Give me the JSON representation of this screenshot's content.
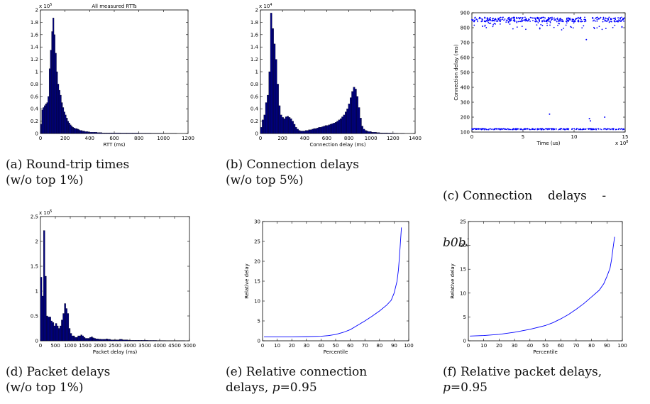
{
  "figure": {
    "captions": [
      {
        "line1": "(a) Round-trip times",
        "line2": "(w/o top 1%)"
      },
      {
        "line1": "(b) Connection delays",
        "line2": "(w/o top 5%)"
      },
      {
        "line1": "(c) Connection    delays    -",
        "line2": "b0b3r"
      },
      {
        "line1": "(d) Packet delays",
        "line2": "(w/o top 1%)"
      },
      {
        "line1": "(e) Relative connection",
        "line2": "delays, p=0.95"
      },
      {
        "line1": "(f) Relative packet delays,",
        "line2": "p=0.95"
      }
    ]
  },
  "chart_data": [
    {
      "type": "bar",
      "title": "All measured RTTs",
      "xlabel": "RTT (ms)",
      "ylabel": "",
      "yexponent": "x 10^5",
      "xlim": [
        0,
        1200
      ],
      "ylim": [
        0,
        2
      ],
      "xticks": [
        "0",
        "200",
        "400",
        "600",
        "800",
        "1000",
        "1200"
      ],
      "yticks": [
        "0",
        "0.2",
        "0.4",
        "0.6",
        "0.8",
        "1",
        "1.2",
        "1.4",
        "1.6",
        "1.8",
        "2"
      ],
      "bar_color": "#000080",
      "bin_width": 10,
      "bins_start": [
        0,
        10,
        20,
        30,
        40,
        50,
        60,
        70,
        80,
        90,
        100,
        110,
        120,
        130,
        140,
        150,
        160,
        170,
        180,
        190,
        200,
        210,
        220,
        230,
        240,
        250,
        260,
        270,
        280,
        290,
        300,
        310,
        320,
        330,
        340,
        350,
        360,
        370,
        380,
        390,
        400,
        420,
        440,
        460,
        480,
        500,
        520,
        540,
        560,
        580,
        600,
        650,
        700,
        750,
        800,
        850,
        900,
        950,
        1000,
        1050,
        1100
      ],
      "values": [
        0.15,
        0.38,
        0.42,
        0.45,
        0.48,
        0.5,
        0.6,
        1.05,
        1.35,
        1.65,
        1.87,
        1.6,
        1.3,
        1.0,
        0.8,
        0.7,
        0.62,
        0.5,
        0.42,
        0.35,
        0.3,
        0.25,
        0.2,
        0.17,
        0.14,
        0.12,
        0.1,
        0.09,
        0.08,
        0.08,
        0.07,
        0.06,
        0.05,
        0.05,
        0.04,
        0.04,
        0.03,
        0.03,
        0.03,
        0.02,
        0.02,
        0.02,
        0.02,
        0.015,
        0.015,
        0.01,
        0.01,
        0.01,
        0.01,
        0.01,
        0.01,
        0.008,
        0.008,
        0.008,
        0.006,
        0.006,
        0.005,
        0.005,
        0.004,
        0.004,
        0.003
      ]
    },
    {
      "type": "bar",
      "title": "",
      "xlabel": "Connection delay (ms)",
      "ylabel": "",
      "yexponent": "x 10^4",
      "xlim": [
        0,
        1400
      ],
      "ylim": [
        0,
        2
      ],
      "xticks": [
        "0",
        "200",
        "400",
        "600",
        "800",
        "1000",
        "1200",
        "1400"
      ],
      "yticks": [
        "0",
        "0.2",
        "0.4",
        "0.6",
        "0.8",
        "1",
        "1.2",
        "1.4",
        "1.6",
        "1.8",
        "2"
      ],
      "bar_color": "#000080",
      "bin_width": 15,
      "bins_start": [
        0,
        15,
        30,
        45,
        60,
        75,
        90,
        105,
        120,
        135,
        150,
        165,
        180,
        195,
        210,
        225,
        240,
        255,
        270,
        285,
        300,
        315,
        330,
        345,
        360,
        375,
        390,
        405,
        420,
        435,
        450,
        465,
        480,
        495,
        510,
        525,
        540,
        555,
        570,
        585,
        600,
        615,
        630,
        645,
        660,
        675,
        690,
        705,
        720,
        735,
        750,
        765,
        780,
        795,
        810,
        825,
        840,
        855,
        870,
        885,
        900,
        915,
        930,
        945,
        960,
        975,
        990,
        1005,
        1020,
        1035,
        1050,
        1065,
        1080,
        1095,
        1110,
        1125,
        1140,
        1155,
        1170,
        1185,
        1200,
        1215,
        1230,
        1245,
        1260,
        1275,
        1290
      ],
      "values": [
        0.1,
        0.22,
        0.3,
        0.5,
        0.62,
        1.0,
        1.95,
        1.7,
        1.45,
        1.2,
        0.8,
        0.45,
        0.3,
        0.26,
        0.24,
        0.27,
        0.28,
        0.26,
        0.24,
        0.2,
        0.15,
        0.1,
        0.07,
        0.05,
        0.04,
        0.04,
        0.04,
        0.05,
        0.05,
        0.06,
        0.06,
        0.07,
        0.08,
        0.08,
        0.09,
        0.1,
        0.1,
        0.11,
        0.12,
        0.13,
        0.13,
        0.14,
        0.15,
        0.16,
        0.17,
        0.18,
        0.2,
        0.22,
        0.24,
        0.27,
        0.3,
        0.35,
        0.4,
        0.48,
        0.58,
        0.68,
        0.75,
        0.72,
        0.6,
        0.42,
        0.25,
        0.12,
        0.07,
        0.05,
        0.04,
        0.03,
        0.03,
        0.02,
        0.02,
        0.02,
        0.015,
        0.015,
        0.01,
        0.01,
        0.01,
        0.01,
        0.01,
        0.008,
        0.008,
        0.006,
        0.006,
        0.005,
        0.005,
        0.004,
        0.004,
        0.003,
        0.003
      ]
    },
    {
      "type": "scatter",
      "title": "",
      "xlabel": "Time (us)",
      "ylabel": "Connection delay (ms)",
      "xexponent": "x 10^8",
      "xlim": [
        0,
        15
      ],
      "ylim": [
        100,
        900
      ],
      "xticks": [
        "0",
        "5",
        "10",
        "15"
      ],
      "yticks": [
        "100",
        "200",
        "300",
        "400",
        "500",
        "600",
        "700",
        "800",
        "900"
      ],
      "point_color": "#0000ff",
      "clusters": [
        {
          "name": "upper band",
          "x_range": [
            0,
            15
          ],
          "y_center": 855
        },
        {
          "name": "lower band",
          "x_range": [
            0,
            15
          ],
          "y_center": 120
        }
      ],
      "outliers": [
        [
          7.6,
          220
        ],
        [
          11.5,
          190
        ],
        [
          11.6,
          175
        ],
        [
          13.0,
          200
        ],
        [
          11.2,
          720
        ]
      ]
    },
    {
      "type": "bar",
      "title": "",
      "xlabel": "Packet delay (ms)",
      "ylabel": "",
      "yexponent": "x 10^5",
      "xlim": [
        0,
        5000
      ],
      "ylim": [
        0,
        2.5
      ],
      "xticks": [
        "0",
        "500",
        "1000",
        "1500",
        "2000",
        "2500",
        "3000",
        "3500",
        "4000",
        "4500",
        "5000"
      ],
      "yticks": [
        "0",
        "0.5",
        "1",
        "1.5",
        "2",
        "2.5"
      ],
      "bar_color": "#000080",
      "bin_width": 50,
      "bins_start": [
        0,
        50,
        100,
        150,
        200,
        250,
        300,
        350,
        400,
        450,
        500,
        550,
        600,
        650,
        700,
        750,
        800,
        850,
        900,
        950,
        1000,
        1050,
        1100,
        1150,
        1200,
        1250,
        1300,
        1350,
        1400,
        1450,
        1500,
        1550,
        1600,
        1650,
        1700,
        1750,
        1800,
        1850,
        1900,
        1950,
        2000,
        2050,
        2100,
        2150,
        2200,
        2250,
        2300,
        2350,
        2400,
        2450,
        2500,
        2550,
        2600,
        2650,
        2700,
        2750,
        2800,
        2850,
        2900,
        2950,
        3000,
        3100,
        3200,
        3300,
        3400,
        3500,
        3600,
        3700,
        3800,
        3900,
        4000,
        4200,
        4400,
        4600,
        4800
      ],
      "values": [
        1.28,
        0.9,
        2.22,
        1.3,
        0.5,
        0.48,
        0.48,
        0.4,
        0.37,
        0.3,
        0.35,
        0.3,
        0.25,
        0.3,
        0.42,
        0.55,
        0.75,
        0.65,
        0.55,
        0.25,
        0.15,
        0.1,
        0.1,
        0.07,
        0.07,
        0.1,
        0.1,
        0.12,
        0.1,
        0.07,
        0.05,
        0.05,
        0.05,
        0.07,
        0.08,
        0.06,
        0.05,
        0.04,
        0.04,
        0.03,
        0.03,
        0.03,
        0.03,
        0.03,
        0.04,
        0.03,
        0.03,
        0.02,
        0.02,
        0.02,
        0.02,
        0.02,
        0.02,
        0.03,
        0.03,
        0.02,
        0.02,
        0.02,
        0.02,
        0.01,
        0.01,
        0.01,
        0.01,
        0.01,
        0.01,
        0.01,
        0.008,
        0.008,
        0.008,
        0.006,
        0.006,
        0.005,
        0.005,
        0.004,
        0.003
      ]
    },
    {
      "type": "line",
      "title": "",
      "xlabel": "Percentile",
      "ylabel": "Relative delay",
      "xlim": [
        0,
        100
      ],
      "ylim": [
        0,
        30
      ],
      "xticks": [
        "0",
        "10",
        "20",
        "30",
        "40",
        "50",
        "60",
        "70",
        "80",
        "90",
        "100"
      ],
      "yticks": [
        "0",
        "5",
        "10",
        "15",
        "20",
        "25",
        "30"
      ],
      "line_color": "#0000ff",
      "x": [
        1,
        10,
        20,
        30,
        40,
        45,
        50,
        55,
        60,
        65,
        70,
        75,
        80,
        85,
        88,
        90,
        92,
        93,
        94,
        95
      ],
      "y": [
        1,
        1,
        1,
        1.05,
        1.15,
        1.3,
        1.6,
        2.1,
        2.8,
        3.9,
        5.0,
        6.2,
        7.5,
        9.0,
        10.2,
        12.0,
        15.0,
        18.0,
        23.0,
        28.5
      ]
    },
    {
      "type": "line",
      "title": "",
      "xlabel": "Percentile",
      "ylabel": "Relative delay",
      "xlim": [
        0,
        100
      ],
      "ylim": [
        0,
        25
      ],
      "xticks": [
        "0",
        "10",
        "20",
        "30",
        "40",
        "50",
        "60",
        "70",
        "80",
        "90",
        "100"
      ],
      "yticks": [
        "0",
        "5",
        "10",
        "15",
        "20",
        "25"
      ],
      "line_color": "#0000ff",
      "x": [
        1,
        10,
        20,
        30,
        40,
        50,
        55,
        60,
        65,
        70,
        75,
        80,
        85,
        88,
        90,
        92,
        93,
        94,
        95
      ],
      "y": [
        1,
        1.1,
        1.35,
        1.8,
        2.4,
        3.2,
        3.8,
        4.6,
        5.5,
        6.6,
        7.8,
        9.2,
        10.6,
        12.0,
        13.5,
        15.2,
        17.0,
        19.5,
        21.8
      ]
    }
  ]
}
